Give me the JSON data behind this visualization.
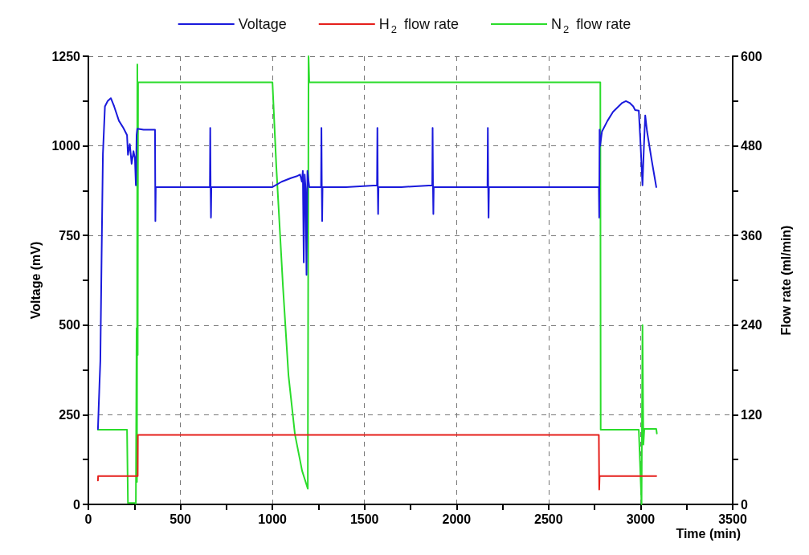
{
  "chart_data": {
    "type": "line",
    "xlabel": "Time (min)",
    "ylabel": "Voltage (mV)",
    "y2label": "Flow rate (ml/min)",
    "xlim": [
      0,
      3500
    ],
    "xticks": [
      0,
      500,
      1000,
      1500,
      2000,
      2500,
      3000,
      3500
    ],
    "ylim": [
      0,
      1250
    ],
    "yticks": [
      0,
      250,
      500,
      750,
      1000,
      1250
    ],
    "y2lim": [
      0,
      600
    ],
    "y2ticks": [
      0,
      120,
      240,
      360,
      480,
      600
    ],
    "grid": true,
    "legend": "top",
    "marker": "none",
    "line_style": "solid",
    "series": [
      {
        "name": "Voltage",
        "color": "#1a1adc",
        "x": [
          52,
          60,
          65,
          72,
          79,
          90,
          105,
          122,
          140,
          166,
          190,
          210,
          215,
          225,
          235,
          245,
          253,
          258,
          262,
          266,
          300,
          362,
          364,
          366,
          450,
          550,
          660,
          662,
          664,
          666,
          668,
          800,
          900,
          1000,
          1050,
          1100,
          1130,
          1150,
          1160,
          1165,
          1170,
          1175,
          1180,
          1185,
          1190,
          1200,
          1264,
          1266,
          1268,
          1270,
          1272,
          1400,
          1568,
          1570,
          1572,
          1574,
          1576,
          1700,
          1868,
          1870,
          1872,
          1874,
          1876,
          2000,
          2168,
          2170,
          2172,
          2174,
          2176,
          2300,
          2500,
          2700,
          2773,
          2775,
          2777,
          2780,
          2790,
          2820,
          2850,
          2880,
          2900,
          2920,
          2940,
          2960,
          2970,
          2990,
          3000,
          3010,
          3018,
          3025,
          3035,
          3060,
          3085
        ],
        "values": [
          210,
          330,
          400,
          700,
          977,
          1110,
          1125,
          1133,
          1110,
          1070,
          1050,
          1030,
          975,
          1005,
          950,
          985,
          965,
          890,
          1030,
          1048,
          1045,
          1045,
          790,
          885,
          885,
          885,
          885,
          1050,
          885,
          800,
          885,
          885,
          885,
          885,
          900,
          910,
          915,
          920,
          900,
          930,
          675,
          920,
          880,
          640,
          930,
          885,
          885,
          1050,
          885,
          790,
          885,
          885,
          890,
          1050,
          890,
          810,
          885,
          885,
          890,
          1050,
          890,
          810,
          885,
          885,
          885,
          1050,
          885,
          800,
          885,
          885,
          885,
          885,
          885,
          800,
          1045,
          1000,
          1040,
          1070,
          1095,
          1110,
          1120,
          1125,
          1120,
          1110,
          1100,
          1098,
          1000,
          890,
          1000,
          1085,
          1040,
          960,
          885
        ]
      },
      {
        "name": "H$_{2}$ flow rate",
        "color": "#e5201c",
        "axis": "y2",
        "x": [
          52,
          53,
          268,
          269,
          1000,
          2000,
          2773,
          2775,
          2777,
          2779,
          3085
        ],
        "values": [
          32,
          38,
          38,
          93,
          93,
          93,
          93,
          20,
          38,
          38,
          38
        ]
      },
      {
        "name": "N$_{2}$ flow rate",
        "color": "#2bdc2b",
        "axis": "y2",
        "x": [
          52,
          210,
          215,
          225,
          255,
          258,
          262,
          264,
          266,
          268,
          270,
          500,
          1000,
          1021,
          1057,
          1087,
          1122,
          1161,
          1192,
          1194,
          1196,
          1200,
          1500,
          2000,
          2781,
          2783,
          2990,
          3005,
          3010,
          3015,
          3020,
          3085,
          3088
        ],
        "values": [
          100,
          100,
          2,
          2,
          2,
          1,
          236,
          30,
          589,
          200,
          565,
          565,
          565,
          452,
          292,
          173,
          94,
          45,
          21,
          300,
          600,
          565,
          565,
          565,
          565,
          100,
          100,
          0,
          240,
          80,
          101,
          101,
          95
        ]
      }
    ]
  }
}
